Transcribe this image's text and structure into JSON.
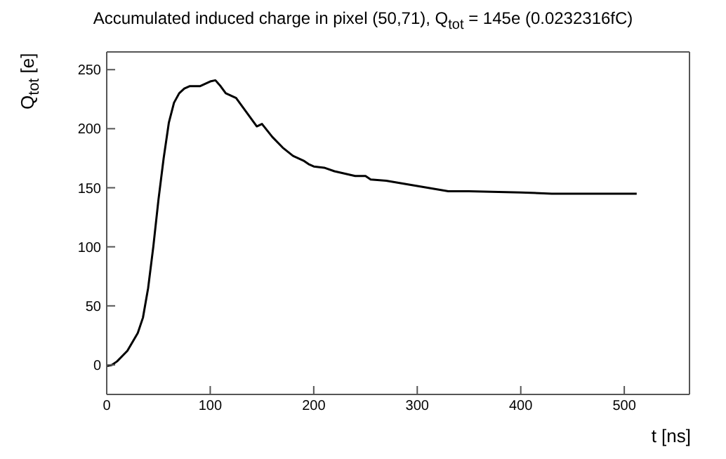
{
  "chart_data": {
    "type": "line",
    "title": "Accumulated induced charge in pixel (50,71), Q$_{tot}$ = 145e (0.0232316fC)",
    "xlabel": "t [ns]",
    "ylabel": "Q$_{tot}$ [e]",
    "x": [
      0,
      5,
      10,
      20,
      30,
      35,
      40,
      45,
      50,
      55,
      60,
      65,
      70,
      75,
      80,
      90,
      100,
      105,
      110,
      115,
      125,
      135,
      145,
      150,
      160,
      170,
      180,
      190,
      195,
      200,
      210,
      220,
      240,
      250,
      255,
      270,
      290,
      310,
      330,
      350,
      400,
      430,
      450,
      512
    ],
    "series": [
      {
        "color": "#000000",
        "values": [
          -1,
          0,
          3,
          12,
          27,
          40,
          65,
          100,
          140,
          175,
          205,
          222,
          230,
          234,
          236,
          236,
          240,
          241,
          236,
          230,
          226,
          214,
          202,
          204,
          193,
          184,
          177,
          173,
          170,
          168,
          167,
          164,
          160,
          160,
          157,
          156,
          153,
          150,
          147,
          147,
          146,
          145,
          145,
          145
        ]
      }
    ],
    "xlim": [
      0,
      563
    ],
    "xticks": [
      0,
      100,
      200,
      300,
      400,
      500
    ],
    "ylim": [
      -25,
      265
    ],
    "yticks": [
      0,
      50,
      100,
      150,
      200,
      250
    ],
    "grid": false,
    "legend": false,
    "marker": "none",
    "line_style": "solid"
  }
}
